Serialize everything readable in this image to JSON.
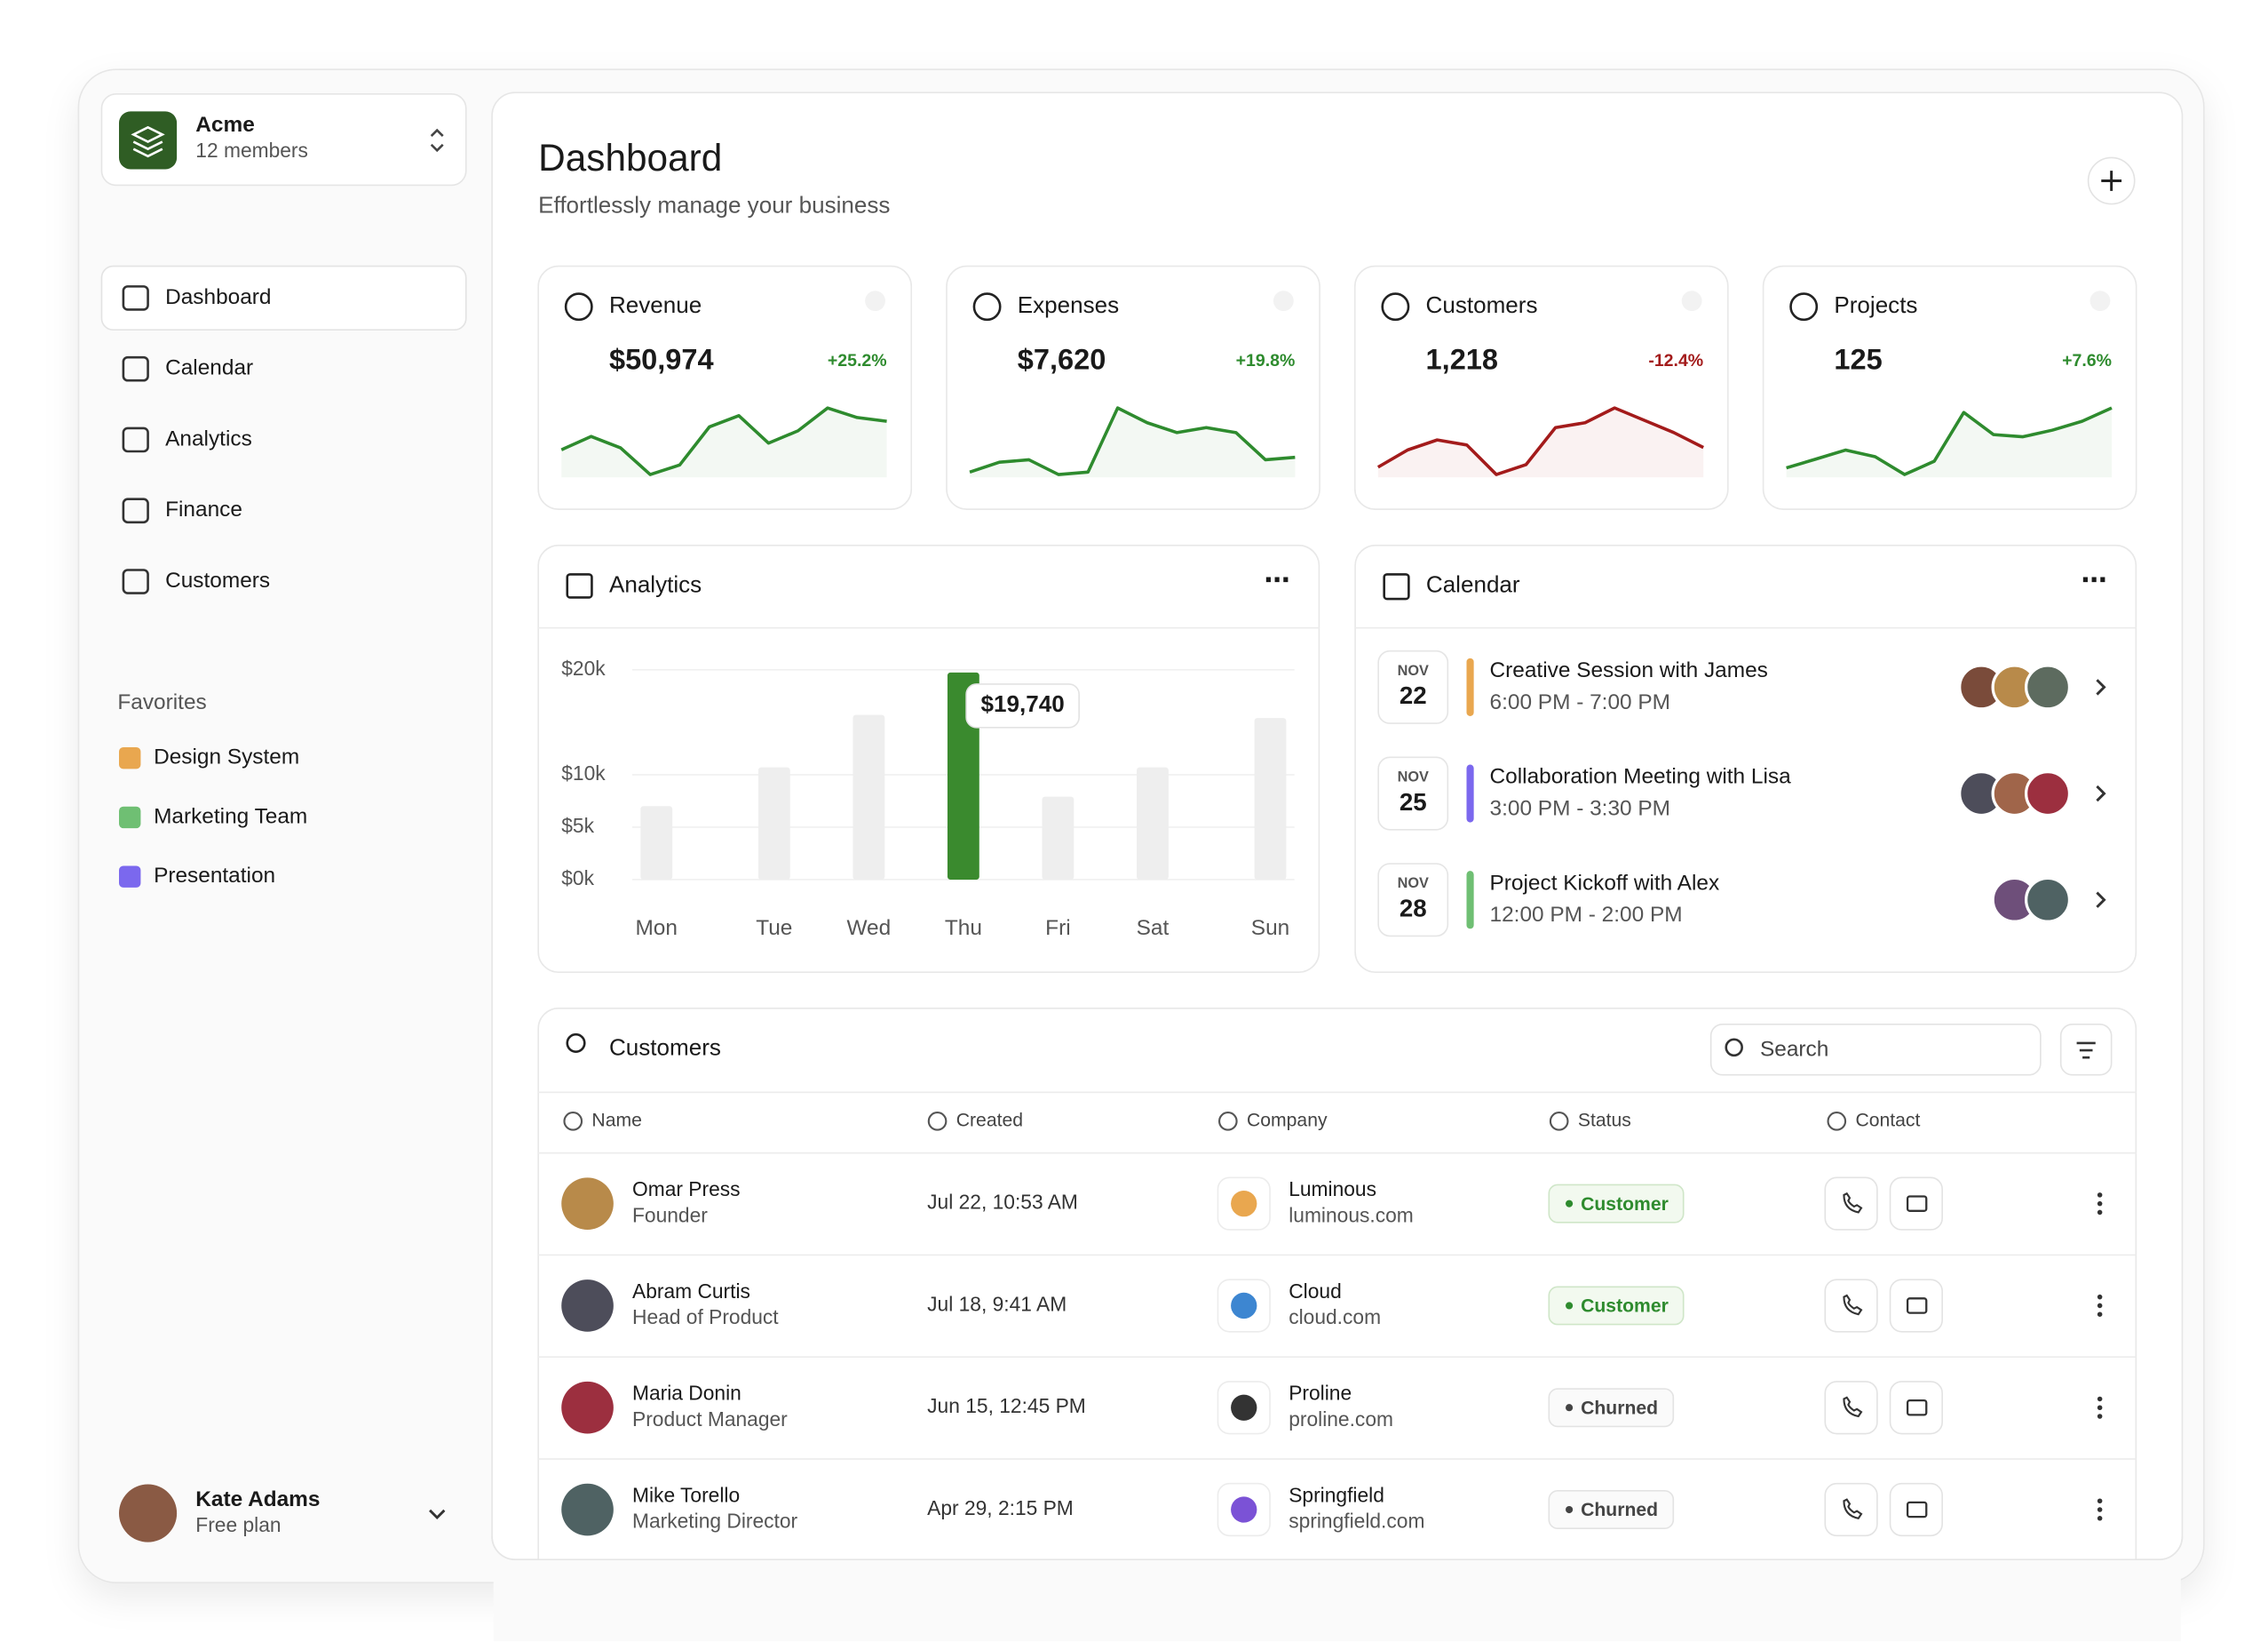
{
  "workspace": {
    "name": "Acme",
    "members": "12 members"
  },
  "nav": [
    "Dashboard",
    "Calendar",
    "Analytics",
    "Finance",
    "Customers"
  ],
  "favorites_title": "Favorites",
  "favorites": [
    {
      "label": "Design System",
      "color": "#e9a74f"
    },
    {
      "label": "Marketing Team",
      "color": "#6fbf73"
    },
    {
      "label": "Presentation",
      "color": "#7b68ee"
    }
  ],
  "user": {
    "name": "Kate Adams",
    "plan": "Free plan"
  },
  "header": {
    "title": "Dashboard",
    "subtitle": "Effortlessly manage your business"
  },
  "stats": [
    {
      "label": "Revenue",
      "value": "$50,974",
      "change": "+25.2%",
      "color": "#2e8b2e",
      "trend": [
        38,
        52,
        40,
        12,
        22,
        62,
        74,
        45,
        58,
        82,
        72,
        68
      ]
    },
    {
      "label": "Expenses",
      "value": "$7,620",
      "change": "+19.8%",
      "color": "#2e8b2e",
      "trend": [
        30,
        38,
        40,
        28,
        30,
        82,
        70,
        62,
        66,
        62,
        40,
        42
      ]
    },
    {
      "label": "Customers",
      "value": "1,218",
      "change": "-12.4%",
      "color": "#a31b1b",
      "trend": [
        28,
        42,
        50,
        46,
        22,
        30,
        60,
        64,
        76,
        66,
        56,
        44
      ]
    },
    {
      "label": "Projects",
      "value": "125",
      "change": "+7.6%",
      "color": "#2e8b2e",
      "trend": [
        30,
        38,
        46,
        40,
        24,
        36,
        80,
        60,
        58,
        64,
        72,
        84
      ]
    }
  ],
  "chart_data": {
    "type": "bar",
    "title": "Analytics",
    "categories": [
      "Mon",
      "Tue",
      "Wed",
      "Thu",
      "Fri",
      "Sat",
      "Sun"
    ],
    "values": [
      7000,
      10700,
      15700,
      19740,
      7900,
      10700,
      15400
    ],
    "value_labels": [
      null,
      null,
      null,
      "$19,740",
      null,
      null,
      null
    ],
    "colors": [
      "#eeeeee",
      "#eeeeee",
      "#eeeeee",
      "#3a8a2e",
      "#eeeeee",
      "#eeeeee",
      "#eeeeee"
    ],
    "ylim": [
      0,
      20000
    ],
    "yticks": [
      {
        "value": 0,
        "label": "$0k"
      },
      {
        "value": 5000,
        "label": "$5k"
      },
      {
        "value": 10000,
        "label": "$10k"
      },
      {
        "value": 20000,
        "label": "$20k"
      }
    ],
    "grid": true
  },
  "calendar": {
    "title": "Calendar",
    "events": [
      {
        "month": "NOV",
        "day": "22",
        "title": "Creative Session with James",
        "time": "6:00 PM - 7:00 PM",
        "color": "#e9a74f"
      },
      {
        "month": "NOV",
        "day": "25",
        "title": "Collaboration Meeting with Lisa",
        "time": "3:00 PM - 3:30 PM",
        "color": "#7b68ee"
      },
      {
        "month": "NOV",
        "day": "28",
        "title": "Project Kickoff with Alex",
        "time": "12:00 PM - 2:00 PM",
        "color": "#6fbf73"
      }
    ]
  },
  "customers": {
    "title": "Customers",
    "search": "Search",
    "columns": [
      "Name",
      "Created",
      "Company",
      "Status",
      "Contact"
    ],
    "rows": [
      {
        "name": "Omar Press",
        "role": "Founder",
        "created": "Jul 22, 10:53 AM",
        "company": "Luminous",
        "domain": "luminous.com",
        "status": "Customer"
      },
      {
        "name": "Abram Curtis",
        "role": "Head of Product",
        "created": "Jul 18, 9:41 AM",
        "company": "Cloud",
        "domain": "cloud.com",
        "status": "Customer"
      },
      {
        "name": "Maria Donin",
        "role": "Product Manager",
        "created": "Jun 15, 12:45 PM",
        "company": "Proline",
        "domain": "proline.com",
        "status": "Churned"
      },
      {
        "name": "Mike Torello",
        "role": "Marketing Director",
        "created": "Apr 29, 2:15 PM",
        "company": "Springfield",
        "domain": "springfield.com",
        "status": "Churned"
      }
    ]
  }
}
